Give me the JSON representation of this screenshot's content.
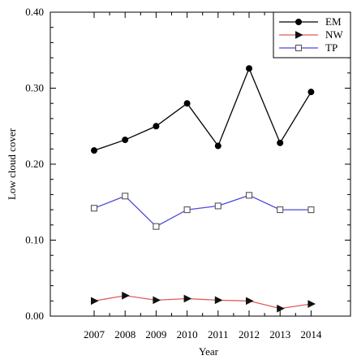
{
  "chart_data": {
    "type": "line",
    "title": "",
    "xlabel": "Year",
    "ylabel": "Low  cloud cover",
    "categories": [
      "2007",
      "2008",
      "2009",
      "2010",
      "2011",
      "2012",
      "2013",
      "2014"
    ],
    "y_tick_labels": [
      "0.00",
      "0.10",
      "0.20",
      "0.30",
      "0.40"
    ],
    "ylim": [
      0,
      0.4
    ],
    "grid": false,
    "legend_position": "top-right",
    "series": [
      {
        "name": "EM",
        "color": "#000000",
        "marker": "filled-circle",
        "values": [
          0.218,
          0.232,
          0.25,
          0.28,
          0.224,
          0.326,
          0.228,
          0.295
        ]
      },
      {
        "name": "NW",
        "color": "#e05a5a",
        "marker": "right-triangle",
        "values": [
          0.02,
          0.027,
          0.021,
          0.023,
          0.021,
          0.02,
          0.01,
          0.016
        ]
      },
      {
        "name": "TP",
        "color": "#4b4bd6",
        "marker": "open-square",
        "values": [
          0.142,
          0.158,
          0.118,
          0.14,
          0.145,
          0.159,
          0.14,
          0.14
        ]
      }
    ]
  }
}
